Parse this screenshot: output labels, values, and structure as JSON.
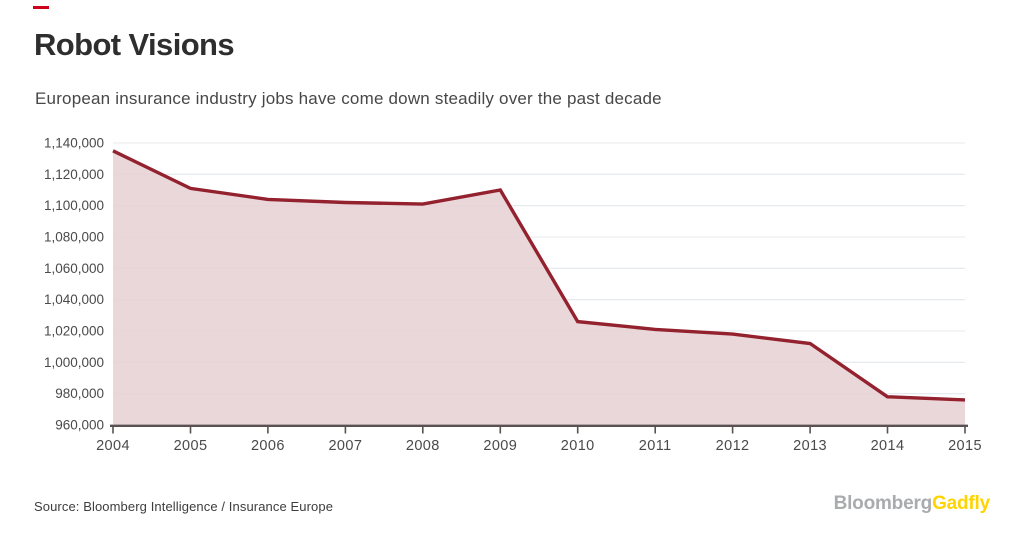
{
  "page": {
    "accent_dash_color": "#d0021b",
    "title": "Robot Visions",
    "subtitle": "European insurance industry jobs have come down steadily over the past decade",
    "source": "Source: Bloomberg Intelligence / Insurance Europe",
    "brand": {
      "bloomberg": "Bloomberg",
      "gadfly": "Gadfly",
      "bloomberg_color": "#a9abad",
      "gadfly_color": "#ffd400"
    }
  },
  "chart_data": {
    "type": "area",
    "title": "Robot Visions",
    "subtitle": "European insurance industry jobs have come down steadily over the past decade",
    "x": [
      2004,
      2005,
      2006,
      2007,
      2008,
      2009,
      2010,
      2011,
      2012,
      2013,
      2014,
      2015
    ],
    "series": [
      {
        "name": "European insurance industry jobs",
        "values": [
          1135000,
          1111000,
          1104000,
          1102000,
          1101000,
          1110000,
          1026000,
          1021000,
          1018000,
          1012000,
          978000,
          976000
        ]
      }
    ],
    "ylim": [
      960000,
      1140000
    ],
    "ytick_step": 20000,
    "xlabel": "",
    "ylabel": "",
    "grid": "horizontal",
    "legend": "none",
    "colors": {
      "line": "#93212e",
      "fill": "#e7d1d5",
      "fill_opacity": 0.88,
      "grid": "#e4e8eb",
      "axis": "#5a5152",
      "tick_label": "#4a4a4a"
    }
  }
}
